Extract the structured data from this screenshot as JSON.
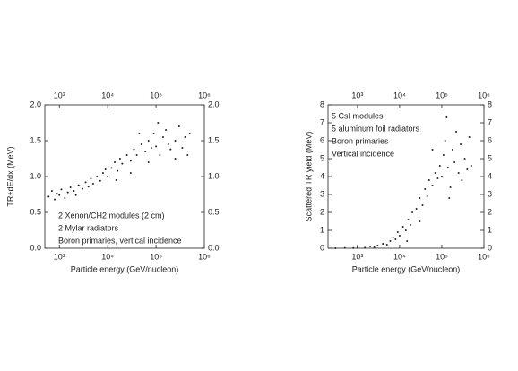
{
  "chart_data": [
    {
      "type": "scatter",
      "xlabel": "Particle energy (GeV/nucleon)",
      "ylabel": "TR+dE/dx (MeV)",
      "annotations": [
        "2 Xenon/CH2 modules (2 cm)",
        "2 Mylar radiators",
        "Boron primaries, vertical incidence"
      ],
      "xlog": true,
      "xlim": [
        500,
        1000000
      ],
      "xticks": [
        {
          "value": 1000,
          "label": "10³"
        },
        {
          "value": 10000,
          "label": "10⁴"
        },
        {
          "value": 100000,
          "label": "10⁵"
        },
        {
          "value": 1000000,
          "label": "10⁶"
        }
      ],
      "ylim": [
        0,
        2
      ],
      "yticks": [
        {
          "value": 0,
          "label": "0.0"
        },
        0.5,
        {
          "value": 1,
          "label": "1.0"
        },
        1.5,
        {
          "value": 2,
          "label": "2.0"
        }
      ],
      "color": "#222222",
      "x": [
        600,
        700,
        800,
        900,
        1000,
        1100,
        1300,
        1500,
        1700,
        2000,
        2200,
        2500,
        3000,
        3500,
        4000,
        4500,
        5000,
        6000,
        7000,
        8000,
        9000,
        10000,
        12000,
        14000,
        16000,
        18000,
        20000,
        25000,
        30000,
        35000,
        40000,
        50000,
        60000,
        70000,
        80000,
        90000,
        100000,
        120000,
        140000,
        160000,
        180000,
        200000,
        250000,
        300000,
        350000,
        400000,
        450000,
        500000,
        110000,
        70000,
        30000,
        15000,
        45000,
        250000
      ],
      "y": [
        0.72,
        0.8,
        0.68,
        0.76,
        0.74,
        0.82,
        0.7,
        0.78,
        0.85,
        0.8,
        0.74,
        0.88,
        0.83,
        0.92,
        0.86,
        0.97,
        0.9,
        1.0,
        0.94,
        1.05,
        1.1,
        1.0,
        1.12,
        1.2,
        1.08,
        1.25,
        1.18,
        1.3,
        1.22,
        1.38,
        1.3,
        1.45,
        1.35,
        1.5,
        1.4,
        1.6,
        1.42,
        1.3,
        1.55,
        1.65,
        1.45,
        1.38,
        1.5,
        1.7,
        1.4,
        1.55,
        1.3,
        1.6,
        1.75,
        1.2,
        1.05,
        0.95,
        1.6,
        1.25
      ]
    },
    {
      "type": "scatter",
      "xlabel": "Particle energy (GeV/nucleon)",
      "ylabel": "Scattered TR yield (MeV)",
      "annotations": [
        "5 CsI modules",
        "5 aluminum foil radiators",
        "Boron primaries",
        "Vertical incidence"
      ],
      "xlog": true,
      "xlim": [
        200,
        1000000
      ],
      "xticks": [
        {
          "value": 1000,
          "label": "10³"
        },
        {
          "value": 10000,
          "label": "10⁴"
        },
        {
          "value": 100000,
          "label": "10⁵"
        },
        {
          "value": 1000000,
          "label": "10⁶"
        }
      ],
      "ylim": [
        0,
        8
      ],
      "yticks": [
        0,
        1,
        2,
        3,
        4,
        5,
        6,
        7,
        8
      ],
      "color": "#222222",
      "x": [
        300,
        500,
        800,
        1000,
        1500,
        2000,
        2500,
        3000,
        4000,
        5000,
        6000,
        7000,
        8000,
        9000,
        10000,
        12000,
        14000,
        16000,
        18000,
        20000,
        25000,
        30000,
        35000,
        40000,
        45000,
        50000,
        60000,
        70000,
        80000,
        90000,
        100000,
        110000,
        120000,
        140000,
        160000,
        180000,
        200000,
        220000,
        250000,
        280000,
        300000,
        350000,
        400000,
        450000,
        500000,
        130000,
        60000,
        30000,
        15000,
        150000
      ],
      "y": [
        0,
        0.02,
        0.01,
        0.05,
        0.03,
        0.1,
        0.05,
        0.15,
        0.25,
        0.2,
        0.4,
        0.6,
        0.5,
        0.9,
        0.7,
        1.2,
        1.0,
        1.6,
        1.3,
        2.0,
        2.2,
        2.8,
        2.4,
        3.3,
        2.9,
        3.8,
        3.5,
        4.2,
        3.9,
        4.6,
        4.0,
        5.2,
        6.0,
        4.5,
        3.4,
        5.5,
        4.8,
        6.5,
        4.2,
        5.8,
        3.8,
        5.0,
        4.4,
        6.2,
        4.6,
        7.3,
        5.5,
        1.5,
        0.4,
        2.8
      ]
    }
  ]
}
